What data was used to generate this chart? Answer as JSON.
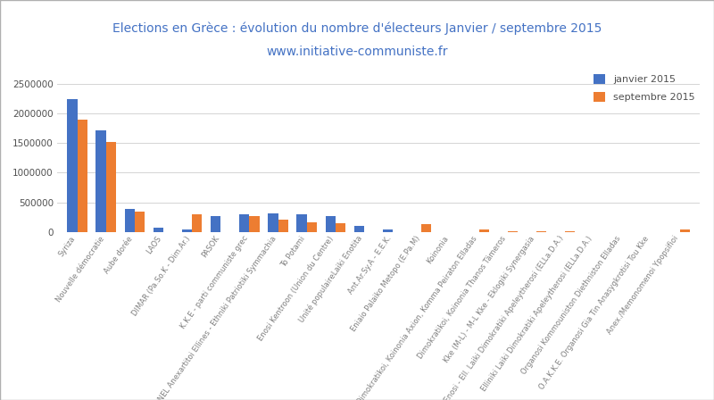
{
  "title_line1": "Elections en Grèce : évolution du nombre d'électeurs Janvier / septembre 2015",
  "title_line2": "www.initiative-communiste.fr",
  "title_color": "#4472c4",
  "legend_jan": "janvier 2015",
  "legend_sep": "septembre 2015",
  "color_jan": "#4472c4",
  "color_sep": "#ed7d31",
  "categories": [
    "Syriza",
    "Nouvelle démocratie",
    "Aube dorée",
    "LAOS",
    "DIMAR (Pa.So.K - Dim.Ar.)",
    "PASOK",
    "K.K.E - parti communiste grec",
    "ANEL Anexartitoi Ellines - Ethniki Patriotiki Symmachia",
    "To Potami",
    "Enosi Kentroon (Union du Centre)",
    "Unité populaireLaiki Enotita",
    "Ant.Ar.Sy.A - E.E.K.",
    "Eniaio Palaiko Metopo (E.Pa.M)",
    "Koinonia",
    "Dimokratikoi, Koinonia Axion, Komma Peiraton Elladas",
    "Dimokratikoi, Koinonia Thanos Tämeros",
    "Kke (M-L) - M-L Kke - Eklogiki Synergasia",
    "Patriotiki Enosi - Ell. Laiki Dimokratiki Apeleytherosi (ELLa.D.A.)",
    "Elliniki Laiki Dimokratiki Apeleytherosi (ELLa.D.A.)",
    "Organosi Kommouniston Diethniston Elladas",
    "O.A.K.K.E. Organosi Gia Tin Anasygkrotisi Tou Kke",
    "Anex./Memonomenoi Ypopsifioi"
  ],
  "values_jan": [
    2246064,
    1718815,
    388447,
    75055,
    42764,
    263542,
    302059,
    321481,
    300509,
    271388,
    99802,
    47000,
    0,
    0,
    0,
    0,
    0,
    0,
    0,
    0,
    0,
    0
  ],
  "values_sep": [
    1895886,
    1516451,
    342936,
    0,
    305622,
    0,
    271884,
    207700,
    169930,
    150671,
    0,
    0,
    130920,
    0,
    40000,
    20000,
    20000,
    20000,
    0,
    0,
    0,
    45000
  ],
  "ylim": [
    0,
    2700000
  ],
  "yticks": [
    0,
    500000,
    1000000,
    1500000,
    2000000,
    2500000
  ],
  "background_color": "#ffffff",
  "grid_color": "#d4d4d4",
  "border_color": "#b0b0b0"
}
